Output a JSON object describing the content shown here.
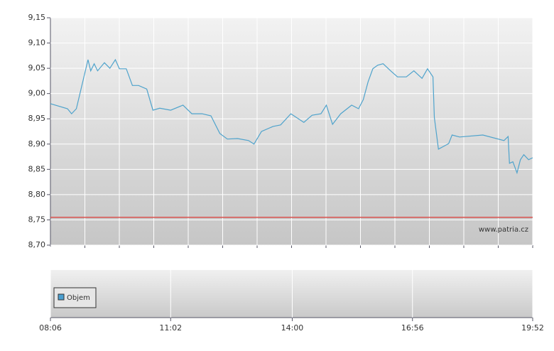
{
  "chart_data": [
    {
      "type": "line",
      "watermark": "www.patria.cz",
      "ylim": [
        8.7,
        9.15
      ],
      "yticks": [
        {
          "value": 8.7,
          "label": "8,70"
        },
        {
          "value": 8.75,
          "label": "8,75"
        },
        {
          "value": 8.8,
          "label": "8,80"
        },
        {
          "value": 8.85,
          "label": "8,85"
        },
        {
          "value": 8.9,
          "label": "8,90"
        },
        {
          "value": 8.95,
          "label": "8,95"
        },
        {
          "value": 9.0,
          "label": "9,00"
        },
        {
          "value": 9.05,
          "label": "9,05"
        },
        {
          "value": 9.1,
          "label": "9,10"
        },
        {
          "value": 9.15,
          "label": "9,15"
        }
      ],
      "xlim": [
        "08:06",
        "19:52"
      ],
      "xticks": [
        "08:06",
        "11:02",
        "14:00",
        "16:56",
        "19:52"
      ],
      "grid": true,
      "reference_line": {
        "value": 8.755,
        "color": "#d9534f"
      },
      "series": [
        {
          "color": "#4fa3cc",
          "x": [
            "08:06",
            "08:31",
            "08:37",
            "08:44",
            "09:01",
            "09:05",
            "09:10",
            "09:15",
            "09:25",
            "09:33",
            "09:41",
            "09:47",
            "09:57",
            "10:06",
            "10:15",
            "10:27",
            "10:36",
            "10:46",
            "11:02",
            "11:20",
            "11:33",
            "11:48",
            "12:01",
            "12:14",
            "12:25",
            "12:40",
            "12:56",
            "13:04",
            "13:15",
            "13:32",
            "13:43",
            "13:58",
            "14:17",
            "14:29",
            "14:42",
            "14:50",
            "14:59",
            "15:11",
            "15:27",
            "15:37",
            "15:44",
            "15:51",
            "15:58",
            "16:05",
            "16:13",
            "16:24",
            "16:34",
            "16:47",
            "16:58",
            "17:10",
            "17:18",
            "17:26",
            "17:28",
            "17:34",
            "17:49",
            "17:54",
            "18:05",
            "18:39",
            "19:10",
            "19:16",
            "19:18",
            "19:23",
            "19:29",
            "19:34",
            "19:39",
            "19:46",
            "19:52"
          ],
          "values": [
            8.98,
            8.97,
            8.96,
            8.97,
            9.067,
            9.045,
            9.059,
            9.045,
            9.061,
            9.05,
            9.067,
            9.049,
            9.049,
            9.016,
            9.016,
            9.009,
            8.967,
            8.971,
            8.967,
            8.977,
            8.96,
            8.96,
            8.956,
            8.921,
            8.91,
            8.911,
            8.907,
            8.9,
            8.925,
            8.935,
            8.938,
            8.96,
            8.943,
            8.957,
            8.96,
            8.977,
            8.939,
            8.96,
            8.977,
            8.97,
            8.988,
            9.023,
            9.049,
            9.056,
            9.059,
            9.045,
            9.033,
            9.033,
            9.045,
            9.03,
            9.049,
            9.033,
            8.953,
            8.89,
            8.901,
            8.918,
            8.914,
            8.918,
            8.907,
            8.915,
            8.862,
            8.865,
            8.843,
            8.869,
            8.879,
            8.869,
            8.873
          ]
        }
      ]
    },
    {
      "type": "volume",
      "legend": {
        "label": "Objem",
        "color": "#4a9fd0"
      }
    }
  ]
}
